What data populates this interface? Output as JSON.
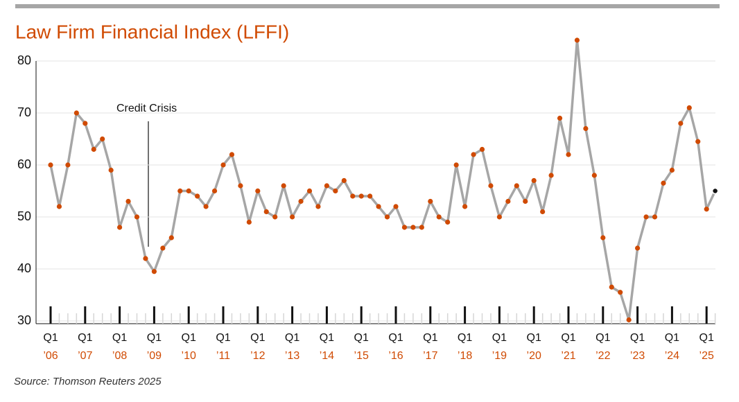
{
  "chart_data": {
    "type": "line",
    "title": "Law Firm Financial Index (LFFI)",
    "source": "Source: Thomson Reuters 2025",
    "annotation": "Credit Crisis",
    "quarter_label": "Q1",
    "categories": [
      "’06",
      null,
      null,
      null,
      "’07",
      null,
      null,
      null,
      "’08",
      null,
      null,
      null,
      "’09",
      null,
      null,
      null,
      "’10",
      null,
      null,
      null,
      "’11",
      null,
      null,
      null,
      "’12",
      null,
      null,
      null,
      "’13",
      null,
      null,
      null,
      "’14",
      null,
      null,
      null,
      "’15",
      null,
      null,
      null,
      "’16",
      null,
      null,
      null,
      "’17",
      null,
      null,
      null,
      "’18",
      null,
      null,
      null,
      "’19",
      null,
      null,
      null,
      "’20",
      null,
      null,
      null,
      "’21",
      null,
      null,
      null,
      "’22",
      null,
      null,
      null,
      "’23",
      null,
      null,
      null,
      "’24",
      null,
      null,
      null,
      "’25",
      null
    ],
    "series": [
      {
        "name": "LFFI",
        "color": "#a6a6a6",
        "marker_color": "#d04a02",
        "last_marker_color": "#111111",
        "values": [
          60,
          52,
          60,
          70,
          68,
          63,
          65,
          59,
          48,
          53,
          50,
          42,
          39.5,
          44,
          46,
          55,
          55,
          54,
          52,
          55,
          60,
          62,
          56,
          49,
          55,
          51,
          50,
          56,
          50,
          53,
          55,
          52,
          56,
          55,
          57,
          54,
          54,
          54,
          52,
          50,
          52,
          48,
          48,
          48,
          53,
          50,
          49,
          60,
          52,
          62,
          63,
          56,
          50,
          53,
          56,
          53,
          57,
          51,
          58,
          69,
          62,
          84,
          67,
          58,
          46,
          36.5,
          35.5,
          30.2,
          44,
          50,
          50,
          56.5,
          59,
          68,
          71,
          64.5,
          51.5,
          55
        ]
      }
    ],
    "ylim": [
      30,
      80
    ],
    "yticks": [
      30,
      40,
      50,
      60,
      70,
      80
    ],
    "grid": true,
    "title_color": "#d04a02",
    "year_label_color": "#d04a02"
  }
}
